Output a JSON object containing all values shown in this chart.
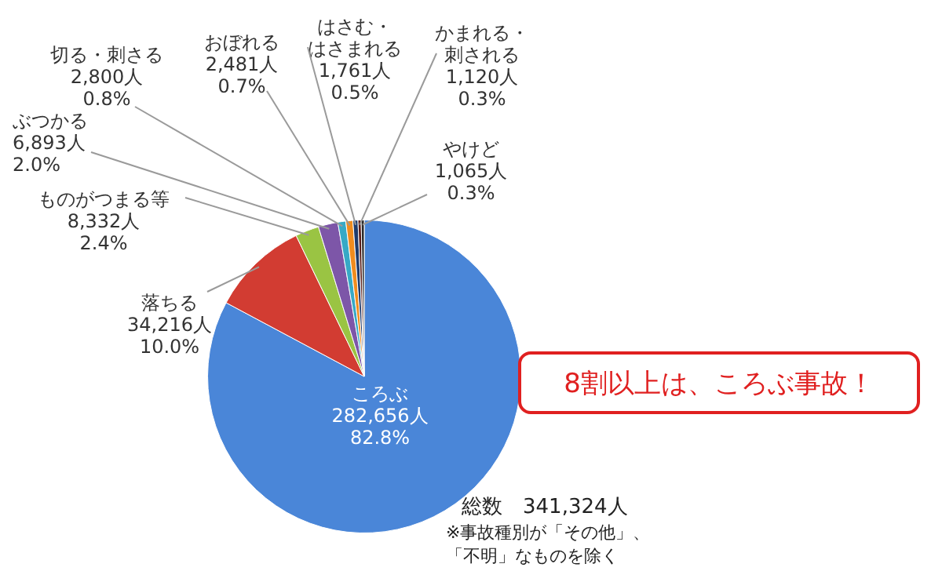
{
  "chart_data": {
    "type": "pie",
    "categories": [
      "ころぶ",
      "落ちる",
      "ものがつまる等",
      "ぶつかる",
      "切る・刺さる",
      "おぼれる",
      "はさむ・はさまれる",
      "かまれる・刺される",
      "やけど"
    ],
    "values": [
      282656,
      34216,
      8332,
      6893,
      2800,
      2481,
      1761,
      1120,
      1065
    ],
    "value_labels": [
      "282,656人\n82.8%",
      "34,216人\n10.0%",
      "8,332人\n2.4%",
      "6,893人\n2.0%",
      "2,800人\n0.8%",
      "2,481人\n0.7%",
      "1,761人\n0.5%",
      "1,120人\n0.3%",
      "1,065人\n0.3%"
    ],
    "colors": [
      "#4a86d8",
      "#d23c32",
      "#9ac443",
      "#7d56a8",
      "#37a9c6",
      "#f08c1e",
      "#1f3b6b",
      "#5a1e1a",
      "#2a2a2a"
    ],
    "annotations": [
      "8割以上は、ころぶ事故！",
      "総数　341,324人",
      "※事故種別が「その他」、「不明」なものを除く"
    ],
    "legend": false
  }
}
